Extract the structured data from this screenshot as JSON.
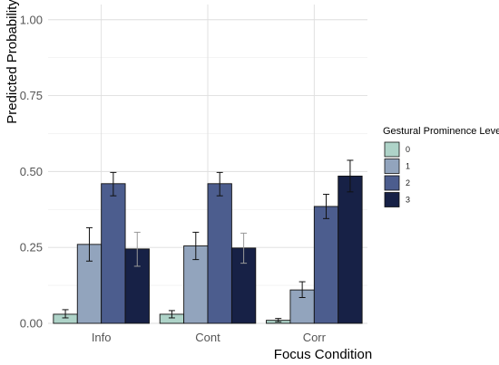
{
  "chart_data": {
    "type": "bar",
    "xlabel": "Focus Condition",
    "ylabel": "Predicted Probability",
    "ylim": [
      0,
      1.05
    ],
    "yticks": [
      "0.00",
      "0.25",
      "0.50",
      "0.75",
      "1.00"
    ],
    "categories": [
      "Info",
      "Cont",
      "Corr"
    ],
    "legend": {
      "title": "Gestural Prominence Level",
      "placement": "right"
    },
    "grid": true,
    "series": [
      {
        "name": "0",
        "color": "#aed3c8",
        "values": [
          0.03,
          0.03,
          0.01
        ],
        "lower": [
          0.018,
          0.018,
          0.005
        ],
        "upper": [
          0.045,
          0.042,
          0.016
        ]
      },
      {
        "name": "1",
        "color": "#92a4bd",
        "values": [
          0.26,
          0.255,
          0.11
        ],
        "lower": [
          0.205,
          0.21,
          0.085
        ],
        "upper": [
          0.315,
          0.3,
          0.137
        ]
      },
      {
        "name": "2",
        "color": "#4c5d8e",
        "values": [
          0.46,
          0.46,
          0.385
        ],
        "lower": [
          0.42,
          0.42,
          0.345
        ],
        "upper": [
          0.497,
          0.497,
          0.425
        ]
      },
      {
        "name": "3",
        "color": "#172146",
        "values": [
          0.245,
          0.248,
          0.485
        ],
        "lower": [
          0.188,
          0.198,
          0.433
        ],
        "upper": [
          0.3,
          0.297,
          0.537
        ]
      }
    ]
  }
}
